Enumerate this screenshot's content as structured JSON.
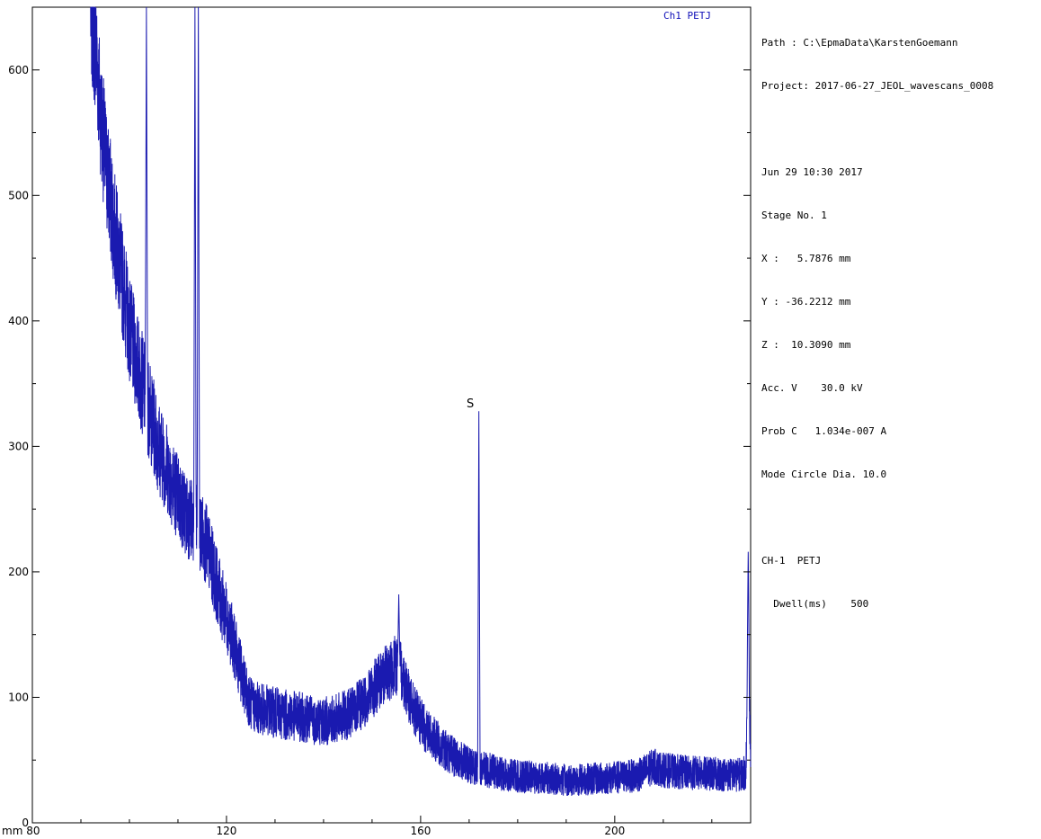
{
  "info": {
    "path": "Path : C:\\EpmaData\\KarstenGoemann",
    "project": "Project: 2017-06-27_JEOL_wavescans_0008",
    "date": "Jun 29 10:30 2017",
    "stage": "Stage No. 1",
    "x": "X :   5.7876 mm",
    "y": "Y : -36.2212 mm",
    "z": "Z :  10.3090 mm",
    "acc_v": "Acc. V    30.0 kV",
    "prob_c": "Prob C   1.034e-007 A",
    "mode": "Mode Circle Dia. 10.0",
    "channel": "CH-1  PETJ",
    "dwell": "  Dwell(ms)    500"
  },
  "chart_data": {
    "type": "line",
    "title": "",
    "legend": "Ch1 PETJ",
    "legend_position": "top-right",
    "xlabel": "mm",
    "ylabel": "",
    "xlim": [
      80,
      228
    ],
    "ylim": [
      0,
      650
    ],
    "x_ticks": [
      80,
      120,
      160,
      200
    ],
    "y_ticks": [
      0,
      100,
      200,
      300,
      400,
      500,
      600
    ],
    "x_tick_labels": [
      "mm 80",
      "120",
      "160",
      "200"
    ],
    "y_tick_labels": [
      "0",
      "100",
      "200",
      "300",
      "400",
      "500",
      "600"
    ],
    "grid": false,
    "line_color": "#1a1ab0",
    "annotations": [
      {
        "text": "S",
        "x": 172.0,
        "y": 330
      }
    ],
    "series": [
      {
        "values_x": [
          92,
          93,
          94,
          95,
          96,
          97,
          98,
          99,
          100,
          101,
          102,
          103,
          104,
          105,
          106,
          107,
          108,
          109,
          110,
          111,
          112,
          113,
          114,
          115,
          116,
          117,
          118,
          119,
          120,
          121,
          122,
          123,
          124,
          125,
          126,
          128,
          130,
          132,
          134,
          136,
          138,
          140,
          142,
          144,
          146,
          148,
          150,
          152,
          154,
          155,
          156,
          157,
          158,
          160,
          162,
          164,
          166,
          168,
          170,
          171,
          172,
          173,
          174,
          176,
          178,
          180,
          185,
          190,
          195,
          200,
          205,
          208,
          210,
          215,
          220,
          225,
          227,
          227.5,
          228
        ],
        "values_y": [
          650,
          620,
          570,
          530,
          500,
          470,
          445,
          420,
          395,
          375,
          360,
          345,
          330,
          315,
          300,
          290,
          280,
          270,
          260,
          250,
          245,
          240,
          235,
          230,
          220,
          205,
          190,
          175,
          165,
          150,
          135,
          120,
          105,
          95,
          92,
          90,
          88,
          86,
          85,
          84,
          82,
          81,
          82,
          85,
          88,
          95,
          105,
          115,
          122,
          126,
          120,
          110,
          95,
          80,
          70,
          62,
          55,
          50,
          46,
          45,
          44,
          43,
          42,
          40,
          38,
          37,
          36,
          34,
          35,
          36,
          38,
          45,
          42,
          40,
          39,
          38,
          40,
          130,
          50
        ],
        "peaks": [
          {
            "x": 103.5,
            "y": 650
          },
          {
            "x": 113.5,
            "y": 650
          },
          {
            "x": 114.2,
            "y": 650
          },
          {
            "x": 155.5,
            "y": 182
          },
          {
            "x": 172.0,
            "y": 328
          },
          {
            "x": 227.5,
            "y": 216
          }
        ]
      }
    ]
  }
}
